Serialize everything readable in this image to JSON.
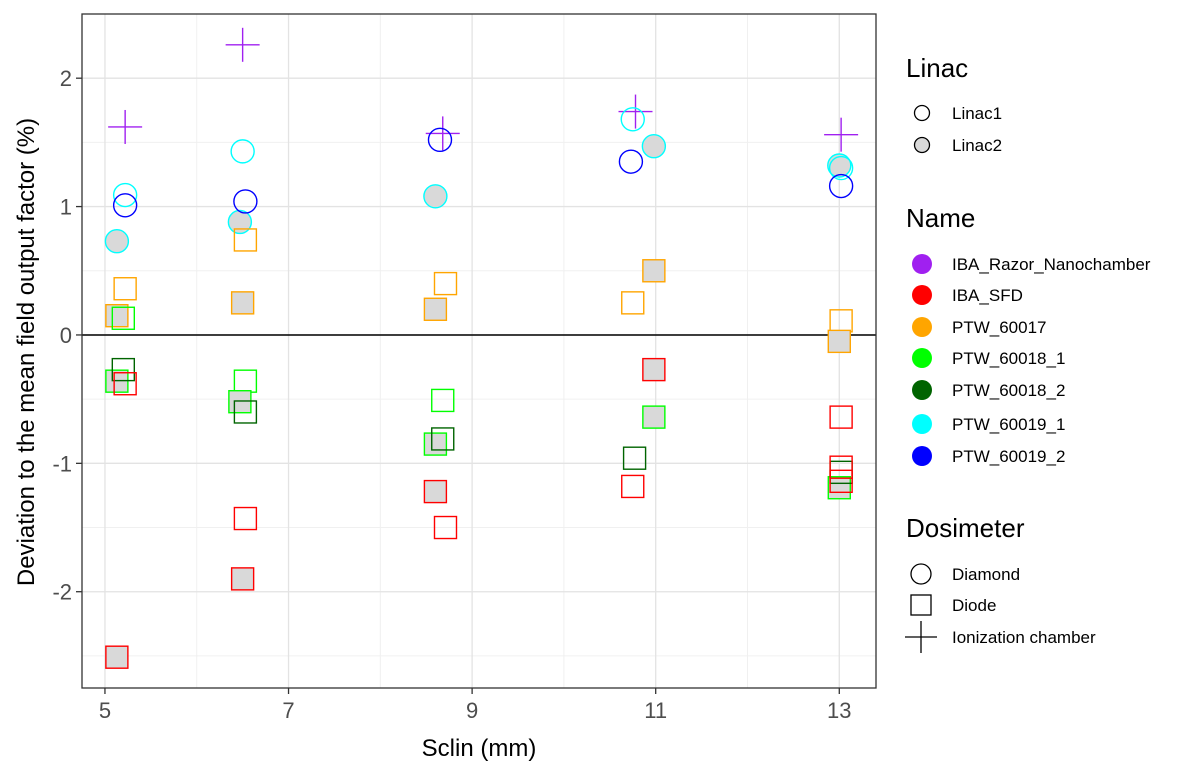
{
  "chart_data": {
    "type": "scatter",
    "title": "",
    "xlabel": "Sclin (mm)",
    "ylabel": "Deviation to the mean field output factor (%)",
    "xlim": [
      4.75,
      13.4
    ],
    "ylim": [
      -2.75,
      2.5
    ],
    "xticks": [
      5,
      7,
      9,
      11,
      13
    ],
    "yticks": [
      -2,
      -1,
      0,
      1,
      2
    ],
    "x_tick_labels": [
      "5",
      "7",
      "9",
      "11",
      "13"
    ],
    "y_tick_labels": [
      "-2",
      "-1",
      "0",
      "1",
      "2"
    ],
    "grid": true,
    "reference_line_y": 0,
    "legend_position": "right",
    "legend": {
      "linac": {
        "title": "Linac",
        "items": [
          {
            "label": "Linac1",
            "fill": "none"
          },
          {
            "label": "Linac2",
            "fill": "#d9d9d9"
          }
        ]
      },
      "name": {
        "title": "Name",
        "items": [
          {
            "label": "IBA_Razor_Nanochamber",
            "color": "#a020f0"
          },
          {
            "label": "IBA_SFD",
            "color": "#ff0000"
          },
          {
            "label": "PTW_60017",
            "color": "#ffa500"
          },
          {
            "label": "PTW_60018_1",
            "color": "#00ff00"
          },
          {
            "label": "PTW_60018_2",
            "color": "#006400"
          },
          {
            "label": "PTW_60019_1",
            "color": "#00ffff"
          },
          {
            "label": "PTW_60019_2",
            "color": "#0000ff"
          }
        ]
      },
      "dosimeter": {
        "title": "Dosimeter",
        "items": [
          {
            "label": "Diamond",
            "shape": "circle"
          },
          {
            "label": "Diode",
            "shape": "square"
          },
          {
            "label": "Ionization chamber",
            "shape": "plus"
          }
        ]
      }
    },
    "points": [
      {
        "x": 5.22,
        "y": 1.62,
        "name": "IBA_Razor_Nanochamber",
        "shape": "plus",
        "linac": "Linac1"
      },
      {
        "x": 6.5,
        "y": 2.26,
        "name": "IBA_Razor_Nanochamber",
        "shape": "plus",
        "linac": "Linac1"
      },
      {
        "x": 8.68,
        "y": 1.57,
        "name": "IBA_Razor_Nanochamber",
        "shape": "plus",
        "linac": "Linac1"
      },
      {
        "x": 10.78,
        "y": 1.74,
        "name": "IBA_Razor_Nanochamber",
        "shape": "plus",
        "linac": "Linac1"
      },
      {
        "x": 13.02,
        "y": 1.56,
        "name": "IBA_Razor_Nanochamber",
        "shape": "plus",
        "linac": "Linac1"
      },
      {
        "x": 5.22,
        "y": 1.09,
        "name": "PTW_60019_1",
        "shape": "circle",
        "linac": "Linac1"
      },
      {
        "x": 5.13,
        "y": 0.73,
        "name": "PTW_60019_1",
        "shape": "circle",
        "linac": "Linac2"
      },
      {
        "x": 6.5,
        "y": 1.43,
        "name": "PTW_60019_1",
        "shape": "circle",
        "linac": "Linac1"
      },
      {
        "x": 6.47,
        "y": 0.88,
        "name": "PTW_60019_1",
        "shape": "circle",
        "linac": "Linac2"
      },
      {
        "x": 8.6,
        "y": 1.08,
        "name": "PTW_60019_1",
        "shape": "circle",
        "linac": "Linac2"
      },
      {
        "x": 10.75,
        "y": 1.68,
        "name": "PTW_60019_1",
        "shape": "circle",
        "linac": "Linac1"
      },
      {
        "x": 10.98,
        "y": 1.47,
        "name": "PTW_60019_1",
        "shape": "circle",
        "linac": "Linac2"
      },
      {
        "x": 13.0,
        "y": 1.32,
        "name": "PTW_60019_1",
        "shape": "circle",
        "linac": "Linac2"
      },
      {
        "x": 13.02,
        "y": 1.3,
        "name": "PTW_60019_1",
        "shape": "circle",
        "linac": "Linac1"
      },
      {
        "x": 5.22,
        "y": 1.01,
        "name": "PTW_60019_2",
        "shape": "circle",
        "linac": "Linac1"
      },
      {
        "x": 6.53,
        "y": 1.04,
        "name": "PTW_60019_2",
        "shape": "circle",
        "linac": "Linac1"
      },
      {
        "x": 8.65,
        "y": 1.52,
        "name": "PTW_60019_2",
        "shape": "circle",
        "linac": "Linac1"
      },
      {
        "x": 10.73,
        "y": 1.35,
        "name": "PTW_60019_2",
        "shape": "circle",
        "linac": "Linac1"
      },
      {
        "x": 13.02,
        "y": 1.16,
        "name": "PTW_60019_2",
        "shape": "circle",
        "linac": "Linac1"
      },
      {
        "x": 5.22,
        "y": 0.36,
        "name": "PTW_60017",
        "shape": "square",
        "linac": "Linac1"
      },
      {
        "x": 5.13,
        "y": 0.15,
        "name": "PTW_60017",
        "shape": "square",
        "linac": "Linac2"
      },
      {
        "x": 6.53,
        "y": 0.74,
        "name": "PTW_60017",
        "shape": "square",
        "linac": "Linac1"
      },
      {
        "x": 6.5,
        "y": 0.25,
        "name": "PTW_60017",
        "shape": "square",
        "linac": "Linac2"
      },
      {
        "x": 8.71,
        "y": 0.4,
        "name": "PTW_60017",
        "shape": "square",
        "linac": "Linac1"
      },
      {
        "x": 8.6,
        "y": 0.2,
        "name": "PTW_60017",
        "shape": "square",
        "linac": "Linac2"
      },
      {
        "x": 10.75,
        "y": 0.25,
        "name": "PTW_60017",
        "shape": "square",
        "linac": "Linac1"
      },
      {
        "x": 10.98,
        "y": 0.5,
        "name": "PTW_60017",
        "shape": "square",
        "linac": "Linac2"
      },
      {
        "x": 13.02,
        "y": 0.11,
        "name": "PTW_60017",
        "shape": "square",
        "linac": "Linac1"
      },
      {
        "x": 13.0,
        "y": -0.05,
        "name": "PTW_60017",
        "shape": "square",
        "linac": "Linac2"
      },
      {
        "x": 5.2,
        "y": 0.13,
        "name": "PTW_60018_1",
        "shape": "square",
        "linac": "Linac1"
      },
      {
        "x": 5.13,
        "y": -0.36,
        "name": "PTW_60018_1",
        "shape": "square",
        "linac": "Linac2"
      },
      {
        "x": 6.53,
        "y": -0.36,
        "name": "PTW_60018_1",
        "shape": "square",
        "linac": "Linac1"
      },
      {
        "x": 6.47,
        "y": -0.52,
        "name": "PTW_60018_1",
        "shape": "square",
        "linac": "Linac2"
      },
      {
        "x": 8.68,
        "y": -0.51,
        "name": "PTW_60018_1",
        "shape": "square",
        "linac": "Linac1"
      },
      {
        "x": 8.6,
        "y": -0.85,
        "name": "PTW_60018_1",
        "shape": "square",
        "linac": "Linac2"
      },
      {
        "x": 10.98,
        "y": -0.64,
        "name": "PTW_60018_1",
        "shape": "square",
        "linac": "Linac2"
      },
      {
        "x": 13.0,
        "y": -1.19,
        "name": "PTW_60018_1",
        "shape": "square",
        "linac": "Linac2"
      },
      {
        "x": 5.2,
        "y": -0.27,
        "name": "PTW_60018_2",
        "shape": "square",
        "linac": "Linac1"
      },
      {
        "x": 6.53,
        "y": -0.6,
        "name": "PTW_60018_2",
        "shape": "square",
        "linac": "Linac1"
      },
      {
        "x": 8.68,
        "y": -0.81,
        "name": "PTW_60018_2",
        "shape": "square",
        "linac": "Linac1"
      },
      {
        "x": 10.77,
        "y": -0.96,
        "name": "PTW_60018_2",
        "shape": "square",
        "linac": "Linac1"
      },
      {
        "x": 13.02,
        "y": -1.07,
        "name": "PTW_60018_2",
        "shape": "square",
        "linac": "Linac1"
      },
      {
        "x": 5.22,
        "y": -0.38,
        "name": "IBA_SFD",
        "shape": "square",
        "linac": "Linac1"
      },
      {
        "x": 5.13,
        "y": -2.51,
        "name": "IBA_SFD",
        "shape": "square",
        "linac": "Linac2"
      },
      {
        "x": 6.53,
        "y": -1.43,
        "name": "IBA_SFD",
        "shape": "square",
        "linac": "Linac1"
      },
      {
        "x": 6.5,
        "y": -1.9,
        "name": "IBA_SFD",
        "shape": "square",
        "linac": "Linac2"
      },
      {
        "x": 8.71,
        "y": -1.5,
        "name": "IBA_SFD",
        "shape": "square",
        "linac": "Linac1"
      },
      {
        "x": 8.6,
        "y": -1.22,
        "name": "IBA_SFD",
        "shape": "square",
        "linac": "Linac2"
      },
      {
        "x": 10.75,
        "y": -1.18,
        "name": "IBA_SFD",
        "shape": "square",
        "linac": "Linac1"
      },
      {
        "x": 10.98,
        "y": -0.27,
        "name": "IBA_SFD",
        "shape": "square",
        "linac": "Linac2"
      },
      {
        "x": 13.02,
        "y": -0.64,
        "name": "IBA_SFD",
        "shape": "square",
        "linac": "Linac1"
      },
      {
        "x": 13.02,
        "y": -1.03,
        "name": "IBA_SFD",
        "shape": "square",
        "linac": "Linac1"
      },
      {
        "x": 13.02,
        "y": -1.14,
        "name": "IBA_SFD",
        "shape": "square",
        "linac": "Linac1"
      }
    ]
  }
}
